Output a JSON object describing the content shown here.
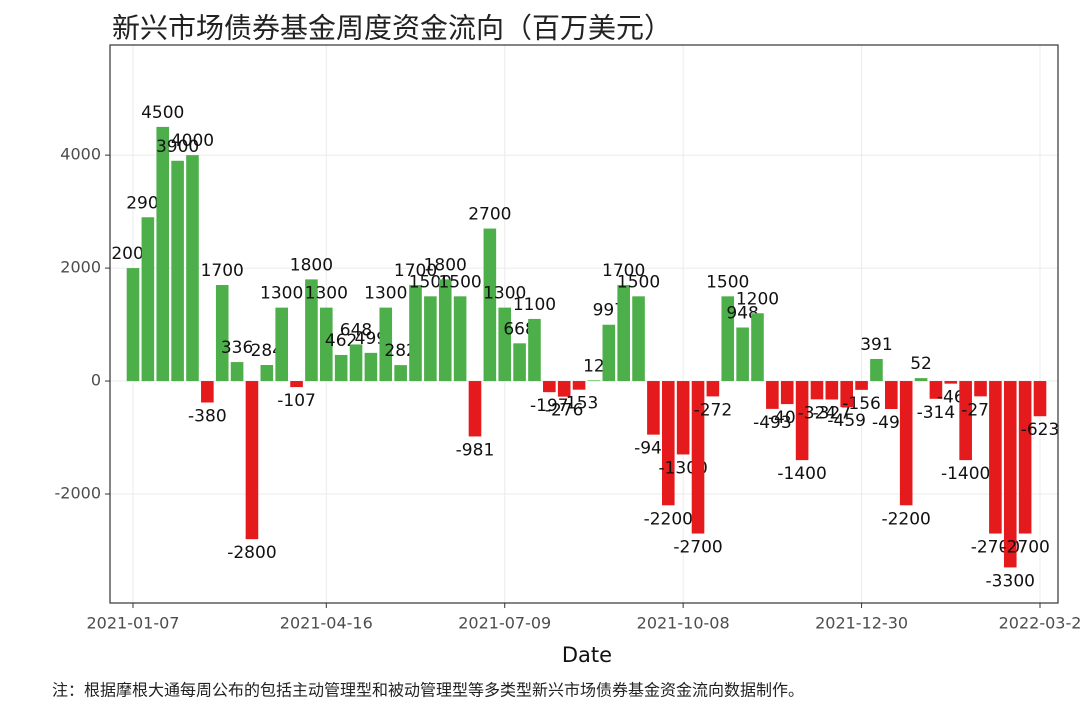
{
  "chart_data": {
    "type": "bar",
    "title": "新兴市场债券基金周度资金流向（百万美元）",
    "x_label": "Date",
    "note": "注：根据摩根大通每周公布的包括主动管理型和被动管理型等多类型新兴市场债券基金资金流向数据制作。",
    "categories": [
      "2021-01-07",
      null,
      null,
      null,
      null,
      null,
      null,
      null,
      null,
      null,
      null,
      null,
      null,
      "2021-04-16",
      null,
      null,
      null,
      null,
      null,
      null,
      null,
      null,
      null,
      null,
      null,
      "2021-07-09",
      null,
      null,
      null,
      null,
      null,
      null,
      null,
      null,
      null,
      null,
      null,
      "2021-10-08",
      null,
      null,
      null,
      null,
      null,
      null,
      null,
      null,
      null,
      null,
      null,
      "2021-12-30",
      null,
      null,
      null,
      null,
      null,
      null,
      null,
      null,
      null,
      null,
      null,
      "2022-03-2"
    ],
    "values": [
      2000,
      2900,
      4500,
      3900,
      4000,
      -380,
      1700,
      336,
      -2800,
      284,
      1300,
      -107,
      1800,
      1300,
      462,
      648,
      499,
      1300,
      282,
      1700,
      1500,
      1800,
      1500,
      -981,
      2700,
      1300,
      668,
      1100,
      -197,
      -276,
      -153,
      12,
      997,
      1700,
      1500,
      -949,
      -2200,
      -1300,
      -2700,
      -272,
      1500,
      948,
      1200,
      -493,
      -408,
      -1400,
      -324,
      -327,
      -459,
      -156,
      391,
      -495,
      -2200,
      52,
      -314,
      -46,
      -1400,
      -271,
      -2700,
      -3300,
      -2700,
      -623
    ],
    "positive_color": "#4daf4a",
    "negative_color": "#e41a1c",
    "ylim": [
      -3930,
      5950
    ],
    "yticks": [
      -2000,
      0,
      2000,
      4000
    ],
    "grid": true
  }
}
